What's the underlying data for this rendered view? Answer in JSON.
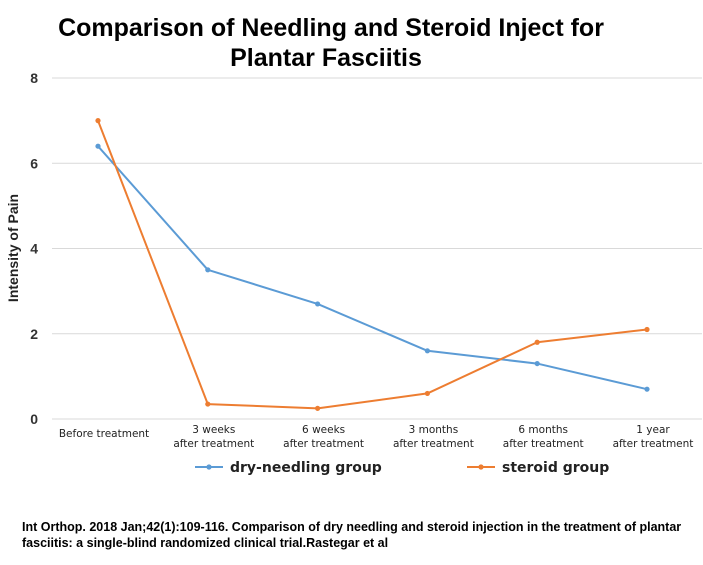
{
  "chart_data": {
    "type": "line",
    "title_line1": "Comparison of Needling and Steroid Inject for",
    "title_line2": "Plantar Fasciitis",
    "ylabel": "Intensity of Pain",
    "xlabel": "",
    "ylim": [
      0,
      8
    ],
    "yticks": [
      "0",
      "2",
      "4",
      "6",
      "8"
    ],
    "grid": true,
    "legend_position": "bottom",
    "categories": [
      [
        "Before treatment"
      ],
      [
        "3 weeks",
        "after treatment"
      ],
      [
        "6 weeks",
        "after treatment"
      ],
      [
        "3 months",
        "after treatment"
      ],
      [
        "6 months",
        "after treatment"
      ],
      [
        "1 year",
        "after treatment"
      ]
    ],
    "series": [
      {
        "name": "dry-needling group",
        "color": "#5b9bd5",
        "values": [
          6.4,
          3.5,
          2.7,
          1.6,
          1.3,
          0.7
        ]
      },
      {
        "name": "steroid group",
        "color": "#ed7d31",
        "values": [
          7.0,
          0.35,
          0.25,
          0.6,
          1.8,
          2.1
        ]
      }
    ]
  },
  "citation": "Int Orthop. 2018 Jan;42(1):109-116. Comparison of dry needling and steroid injection in the treatment of plantar fasciitis: a single-blind randomized clinical trial.Rastegar et al"
}
